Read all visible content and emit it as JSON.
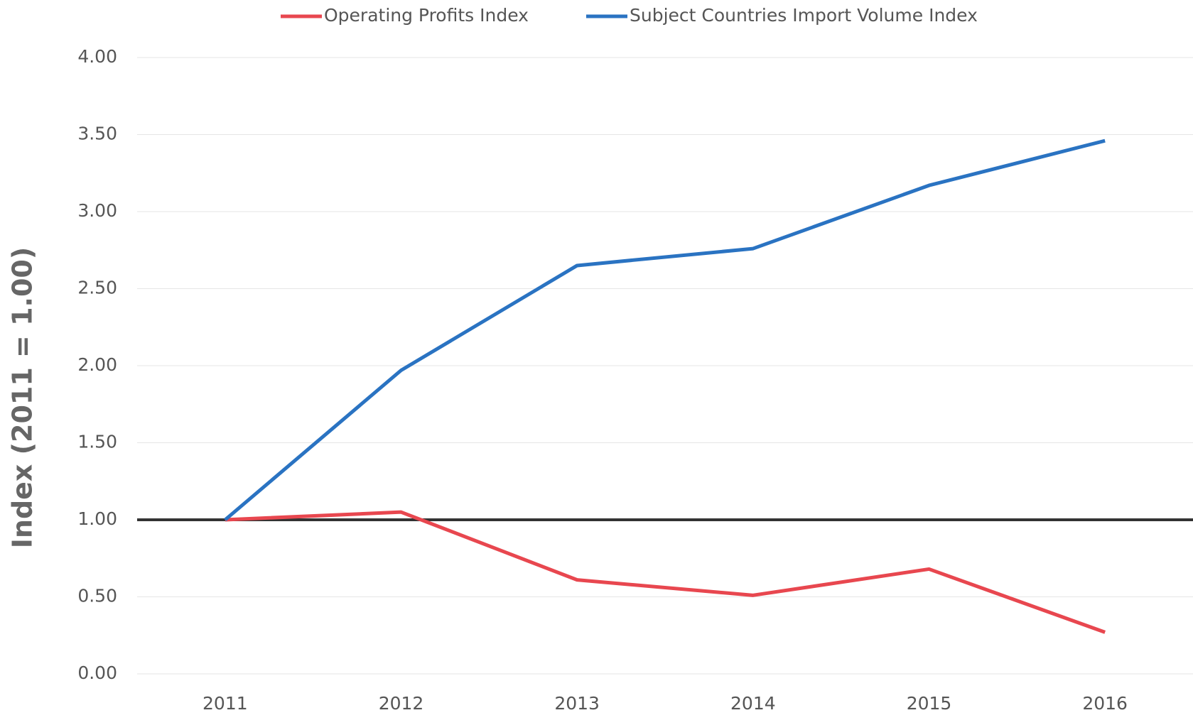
{
  "chart_data": {
    "type": "line",
    "y_label": "Index (2011 = 1.00)",
    "categories": [
      "2011",
      "2012",
      "2013",
      "2014",
      "2015",
      "2016"
    ],
    "series": [
      {
        "name": "Operating Profits Index",
        "color": "#e8474f",
        "values": [
          1.0,
          1.05,
          0.61,
          0.51,
          0.68,
          0.27
        ]
      },
      {
        "name": "Subject Countries Import Volume Index",
        "color": "#2a73c2",
        "values": [
          1.0,
          1.97,
          2.65,
          2.76,
          3.17,
          3.46
        ]
      }
    ],
    "ylim": [
      0,
      4
    ],
    "yticks": [
      {
        "value": 0,
        "label": "0.00"
      },
      {
        "value": 0.5,
        "label": "0.50"
      },
      {
        "value": 1,
        "label": "1.00"
      },
      {
        "value": 1.5,
        "label": "1.50"
      },
      {
        "value": 2,
        "label": "2.00"
      },
      {
        "value": 2.5,
        "label": "2.50"
      },
      {
        "value": 3,
        "label": "3.00"
      },
      {
        "value": 3.5,
        "label": "3.50"
      },
      {
        "value": 4,
        "label": "4.00"
      }
    ],
    "reference_line": 1,
    "grid": true,
    "legend": "top"
  }
}
